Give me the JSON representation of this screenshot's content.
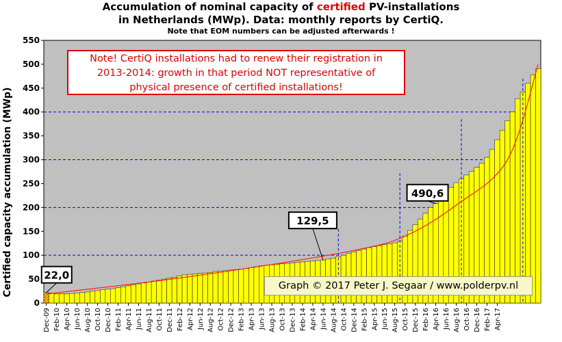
{
  "header": {
    "line1_a": "Accumulation  of nominal  capacity of ",
    "line1_highlight": "certified",
    "line1_b": " PV-installations",
    "line2": "in Netherlands (MWp). Data: monthly  reports by CertiQ.",
    "line3": "Note that EOM numbers can be adjusted afterwards  !"
  },
  "note": {
    "line1": "Note! CertiQ installations had to renew their registration in",
    "line2": "2013-2014:  growth in that period NOT representative of",
    "line3": "physical presence of certified installations!"
  },
  "credit": "Graph © 2017 Peter J. Segaar / www.polderpv.nl",
  "callouts": [
    {
      "label": "22,0",
      "month_index": 0
    },
    {
      "label": "129,5",
      "month_index": 54
    },
    {
      "label": "490,6",
      "month_index": 76
    }
  ],
  "colors": {
    "plot_bg": "#c0c0c0",
    "bar_fill": "#ffff00",
    "bar_stroke": "#303030",
    "grid": "#0000dd",
    "trend": "#ff2020",
    "first_bar_fill": "#f0a030"
  },
  "chart_data": {
    "type": "bar",
    "title": "Accumulation of nominal capacity of certified PV-installations in Netherlands (MWp). Data: monthly reports by CertiQ.",
    "ylabel": "Certified capacity accumulation (MWp)",
    "xlabel": "",
    "ylim": [
      0,
      550
    ],
    "yticks": [
      0,
      50,
      100,
      150,
      200,
      250,
      300,
      350,
      400,
      450,
      500,
      550
    ],
    "grid_lines": [
      100,
      200,
      300,
      400
    ],
    "start_month": "Dec-09",
    "tick_labels": [
      "Dec-09",
      "Feb-10",
      "Apr-10",
      "Jun-10",
      "Aug-10",
      "Oct-10",
      "Dec-10",
      "Feb-11",
      "Apr-11",
      "Jun-11",
      "Aug-11",
      "Oct-11",
      "Dec-11",
      "Feb-12",
      "Apr-12",
      "Jun-12",
      "Aug-12",
      "Oct-12",
      "Dec-12",
      "Feb-13",
      "Apr-13",
      "Jun-13",
      "Aug-13",
      "Oct-13",
      "Dec-13",
      "Feb-14",
      "Apr-14",
      "Jun-14",
      "Aug-14",
      "Oct-14",
      "Dec-14",
      "Feb-15",
      "Apr-15",
      "Jun-15",
      "Aug-15",
      "Oct-15",
      "Dec-15",
      "Feb-16",
      "Apr-16",
      "Jun-16",
      "Aug-16",
      "Oct-16",
      "Dec-16",
      "Feb-17",
      "Apr-17"
    ],
    "values": [
      22.0,
      21,
      19,
      19,
      19,
      20,
      21,
      22,
      23,
      25,
      26,
      28,
      29,
      30,
      32,
      34,
      36,
      38,
      40,
      42,
      44,
      46,
      48,
      50,
      52,
      54,
      57,
      59,
      60,
      61,
      62,
      63,
      64,
      66,
      67,
      68,
      69,
      70,
      71,
      72,
      74,
      76,
      78,
      79,
      80,
      81,
      82,
      83,
      84,
      85,
      86,
      87,
      88,
      89,
      90,
      92,
      94,
      97,
      100,
      104,
      107,
      110,
      113,
      116,
      118,
      120,
      122,
      124,
      126,
      129.5,
      140,
      152,
      164,
      176,
      188,
      200,
      208,
      218,
      230,
      242,
      252,
      260,
      268,
      276,
      284,
      293,
      305,
      322,
      342,
      362,
      382,
      400,
      428,
      442,
      460,
      478,
      490.6
    ],
    "trend": [
      [
        0,
        19
      ],
      [
        20,
        44
      ],
      [
        40,
        74
      ],
      [
        60,
        110
      ],
      [
        70,
        140
      ],
      [
        80,
        205
      ],
      [
        90,
        300
      ],
      [
        96,
        500
      ]
    ],
    "dashed_markers": [
      {
        "index": 57,
        "top": 155
      },
      {
        "index": 69,
        "top": 272
      },
      {
        "index": 81,
        "top": 385
      },
      {
        "index": 93,
        "top": 470
      }
    ]
  }
}
